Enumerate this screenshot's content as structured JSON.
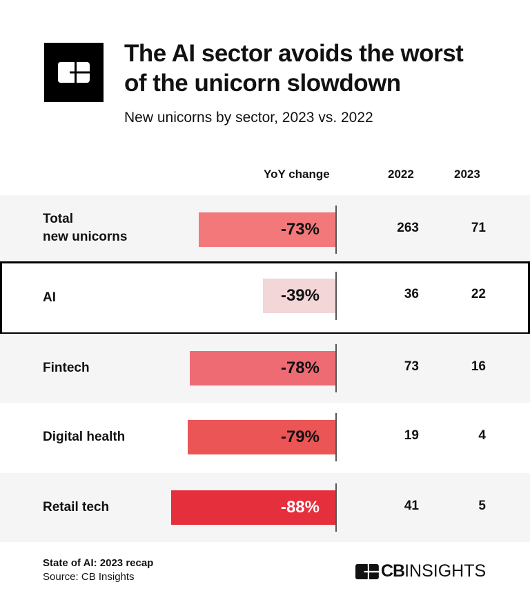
{
  "header": {
    "logo_text": "CB",
    "title_line1": "The AI sector avoids the worst",
    "title_line2": "of the unicorn slowdown",
    "subtitle": "New unicorns by sector, 2023 vs. 2022"
  },
  "chart_data": {
    "type": "table",
    "columns": [
      "YoY change",
      "2022",
      "2023"
    ],
    "highlighted_row": "AI",
    "rows": [
      {
        "label_line1": "Total",
        "label_line2": "new unicorns",
        "yoy": -73,
        "yoy_label": "-73%",
        "v2022": "263",
        "v2023": "71",
        "color": "#f3787a",
        "text_color": "#111111"
      },
      {
        "label_line1": "AI",
        "label_line2": "",
        "yoy": -39,
        "yoy_label": "-39%",
        "v2022": "36",
        "v2023": "22",
        "color": "#f2d6d8",
        "text_color": "#111111"
      },
      {
        "label_line1": "Fintech",
        "label_line2": "",
        "yoy": -78,
        "yoy_label": "-78%",
        "v2022": "73",
        "v2023": "16",
        "color": "#ef6b74",
        "text_color": "#111111"
      },
      {
        "label_line1": "Digital health",
        "label_line2": "",
        "yoy": -79,
        "yoy_label": "-79%",
        "v2022": "19",
        "v2023": "4",
        "color": "#ec5556",
        "text_color": "#111111"
      },
      {
        "label_line1": "Retail tech",
        "label_line2": "",
        "yoy": -88,
        "yoy_label": "-88%",
        "v2022": "41",
        "v2023": "5",
        "color": "#e52f3c",
        "text_color": "#ffffff"
      }
    ]
  },
  "footer": {
    "report": "State of AI: 2023 recap",
    "source": "Source: CB Insights",
    "brand_bold": "CB",
    "brand_thin": "INSIGHTS"
  }
}
